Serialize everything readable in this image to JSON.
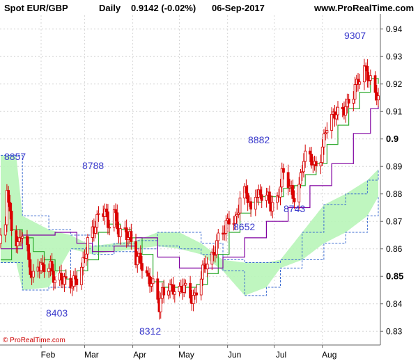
{
  "header": {
    "instrument": "Spot EUR/GBP",
    "period": "Daily",
    "quote": "0.9142 (-0.02%)",
    "date": "06-Sep-2017",
    "site": "www.ProRealTime.com"
  },
  "footer": {
    "copyright": "© ProRealTime.com"
  },
  "chart_data": {
    "type": "candlestick",
    "title": "Spot EUR/GBP",
    "ylim": [
      0.825,
      0.945
    ],
    "y_ticks": [
      "0.94",
      "0.93",
      "0.92",
      "0.91",
      "0.9",
      "0.89",
      "0.88",
      "0.87",
      "0.86",
      "0.85",
      "0.84",
      "0.83"
    ],
    "y_major_ticks": [
      "0.9",
      "0.85"
    ],
    "x_ticks": [
      {
        "label": "Feb",
        "date": "2017-02-01"
      },
      {
        "label": "Mar",
        "date": "2017-03-01"
      },
      {
        "label": "Apr",
        "date": "2017-04-01"
      },
      {
        "label": "May",
        "date": "2017-05-01"
      },
      {
        "label": "Jun",
        "date": "2017-06-01"
      },
      {
        "label": "Jul",
        "date": "2017-07-01"
      },
      {
        "label": "Aug",
        "date": "2017-08-01"
      }
    ],
    "xlim": [
      "2017-01-06",
      "2017-09-06"
    ],
    "annotations": [
      {
        "text": "8857",
        "date": "2017-01-10",
        "price": 0.8857
      },
      {
        "text": "8788",
        "date": "2017-03-14",
        "price": 0.8788
      },
      {
        "text": "8403",
        "date": "2017-02-07",
        "price": 0.8403
      },
      {
        "text": "8312",
        "date": "2017-04-18",
        "price": 0.8312
      },
      {
        "text": "8882",
        "date": "2017-06-19",
        "price": 0.8882
      },
      {
        "text": "8652",
        "date": "2017-06-13",
        "price": 0.8652
      },
      {
        "text": "8743",
        "date": "2017-07-05",
        "price": 0.8743
      },
      {
        "text": "9307",
        "date": "2017-08-29",
        "price": 0.9307
      }
    ],
    "close_path": [
      [
        "2017-01-06",
        0.862
      ],
      [
        "2017-01-09",
        0.868
      ],
      [
        "2017-01-10",
        0.882
      ],
      [
        "2017-01-11",
        0.875
      ],
      [
        "2017-01-13",
        0.869
      ],
      [
        "2017-01-17",
        0.862
      ],
      [
        "2017-01-19",
        0.866
      ],
      [
        "2017-01-23",
        0.858
      ],
      [
        "2017-01-26",
        0.849
      ],
      [
        "2017-01-30",
        0.856
      ],
      [
        "2017-02-02",
        0.853
      ],
      [
        "2017-02-07",
        0.852
      ],
      [
        "2017-02-10",
        0.849
      ],
      [
        "2017-02-14",
        0.851
      ],
      [
        "2017-02-17",
        0.847
      ],
      [
        "2017-02-21",
        0.846
      ],
      [
        "2017-02-24",
        0.85
      ],
      [
        "2017-02-28",
        0.856
      ],
      [
        "2017-03-03",
        0.862
      ],
      [
        "2017-03-07",
        0.866
      ],
      [
        "2017-03-10",
        0.873
      ],
      [
        "2017-03-14",
        0.876
      ],
      [
        "2017-03-16",
        0.868
      ],
      [
        "2017-03-20",
        0.872
      ],
      [
        "2017-03-23",
        0.866
      ],
      [
        "2017-03-27",
        0.868
      ],
      [
        "2017-03-30",
        0.864
      ],
      [
        "2017-04-03",
        0.855
      ],
      [
        "2017-04-06",
        0.856
      ],
      [
        "2017-04-10",
        0.851
      ],
      [
        "2017-04-13",
        0.848
      ],
      [
        "2017-04-18",
        0.838
      ],
      [
        "2017-04-20",
        0.844
      ],
      [
        "2017-04-24",
        0.848
      ],
      [
        "2017-04-27",
        0.845
      ],
      [
        "2017-05-01",
        0.843
      ],
      [
        "2017-05-04",
        0.847
      ],
      [
        "2017-05-08",
        0.844
      ],
      [
        "2017-05-11",
        0.842
      ],
      [
        "2017-05-15",
        0.849
      ],
      [
        "2017-05-18",
        0.855
      ],
      [
        "2017-05-22",
        0.858
      ],
      [
        "2017-05-25",
        0.862
      ],
      [
        "2017-05-30",
        0.866
      ],
      [
        "2017-06-02",
        0.872
      ],
      [
        "2017-06-06",
        0.871
      ],
      [
        "2017-06-09",
        0.877
      ],
      [
        "2017-06-13",
        0.88
      ],
      [
        "2017-06-16",
        0.874
      ],
      [
        "2017-06-19",
        0.882
      ],
      [
        "2017-06-22",
        0.879
      ],
      [
        "2017-06-26",
        0.878
      ],
      [
        "2017-06-29",
        0.876
      ],
      [
        "2017-07-03",
        0.879
      ],
      [
        "2017-07-06",
        0.887
      ],
      [
        "2017-07-10",
        0.883
      ],
      [
        "2017-07-13",
        0.879
      ],
      [
        "2017-07-17",
        0.884
      ],
      [
        "2017-07-20",
        0.893
      ],
      [
        "2017-07-24",
        0.892
      ],
      [
        "2017-07-27",
        0.89
      ],
      [
        "2017-07-31",
        0.895
      ],
      [
        "2017-08-03",
        0.903
      ],
      [
        "2017-08-07",
        0.906
      ],
      [
        "2017-08-10",
        0.91
      ],
      [
        "2017-08-14",
        0.912
      ],
      [
        "2017-08-17",
        0.912
      ],
      [
        "2017-08-21",
        0.915
      ],
      [
        "2017-08-24",
        0.922
      ],
      [
        "2017-08-29",
        0.927
      ],
      [
        "2017-08-31",
        0.921
      ],
      [
        "2017-09-04",
        0.916
      ],
      [
        "2017-09-06",
        0.9142
      ]
    ],
    "series": [
      {
        "role": "tenkan",
        "color": "#2eaa2e",
        "points": [
          [
            "2017-01-06",
            0.856
          ],
          [
            "2017-01-13",
            0.867
          ],
          [
            "2017-01-20",
            0.864
          ],
          [
            "2017-01-27",
            0.859
          ],
          [
            "2017-02-03",
            0.856
          ],
          [
            "2017-02-10",
            0.852
          ],
          [
            "2017-02-17",
            0.849
          ],
          [
            "2017-02-24",
            0.852
          ],
          [
            "2017-03-03",
            0.856
          ],
          [
            "2017-03-10",
            0.866
          ],
          [
            "2017-03-17",
            0.869
          ],
          [
            "2017-03-24",
            0.867
          ],
          [
            "2017-03-31",
            0.864
          ],
          [
            "2017-04-07",
            0.858
          ],
          [
            "2017-04-14",
            0.848
          ],
          [
            "2017-04-21",
            0.846
          ],
          [
            "2017-04-28",
            0.846
          ],
          [
            "2017-05-05",
            0.846
          ],
          [
            "2017-05-12",
            0.847
          ],
          [
            "2017-05-19",
            0.851
          ],
          [
            "2017-05-26",
            0.858
          ],
          [
            "2017-06-02",
            0.866
          ],
          [
            "2017-06-09",
            0.873
          ],
          [
            "2017-06-16",
            0.877
          ],
          [
            "2017-06-23",
            0.879
          ],
          [
            "2017-06-30",
            0.879
          ],
          [
            "2017-07-07",
            0.882
          ],
          [
            "2017-07-14",
            0.883
          ],
          [
            "2017-07-21",
            0.887
          ],
          [
            "2017-07-28",
            0.891
          ],
          [
            "2017-08-04",
            0.898
          ],
          [
            "2017-08-11",
            0.905
          ],
          [
            "2017-08-18",
            0.911
          ],
          [
            "2017-08-25",
            0.917
          ],
          [
            "2017-09-01",
            0.922
          ],
          [
            "2017-09-06",
            0.92
          ]
        ]
      },
      {
        "role": "kijun",
        "color": "#8000a0",
        "points": [
          [
            "2017-01-06",
            0.86
          ],
          [
            "2017-01-20",
            0.865
          ],
          [
            "2017-02-10",
            0.866
          ],
          [
            "2017-02-24",
            0.862
          ],
          [
            "2017-03-06",
            0.859
          ],
          [
            "2017-03-20",
            0.861
          ],
          [
            "2017-04-03",
            0.864
          ],
          [
            "2017-04-17",
            0.857
          ],
          [
            "2017-05-01",
            0.853
          ],
          [
            "2017-05-15",
            0.853
          ],
          [
            "2017-05-29",
            0.857
          ],
          [
            "2017-06-12",
            0.864
          ],
          [
            "2017-06-26",
            0.87
          ],
          [
            "2017-07-10",
            0.875
          ],
          [
            "2017-07-24",
            0.883
          ],
          [
            "2017-08-07",
            0.891
          ],
          [
            "2017-08-21",
            0.902
          ],
          [
            "2017-09-01",
            0.911
          ],
          [
            "2017-09-06",
            0.912
          ]
        ]
      }
    ],
    "cloud": {
      "bullish_color": "#b8f5b8",
      "bearish_color": "#f7a8dc",
      "span_a": [
        [
          "2017-01-06",
          0.894
        ],
        [
          "2017-01-16",
          0.894
        ],
        [
          "2017-01-20",
          0.872
        ],
        [
          "2017-02-06",
          0.867
        ],
        [
          "2017-02-20",
          0.865
        ],
        [
          "2017-03-06",
          0.861
        ],
        [
          "2017-03-20",
          0.862
        ],
        [
          "2017-04-03",
          0.863
        ],
        [
          "2017-04-17",
          0.866
        ],
        [
          "2017-05-01",
          0.866
        ],
        [
          "2017-05-15",
          0.862
        ],
        [
          "2017-05-29",
          0.856
        ],
        [
          "2017-06-12",
          0.855
        ],
        [
          "2017-06-26",
          0.855
        ],
        [
          "2017-07-05",
          0.856
        ],
        [
          "2017-07-19",
          0.866
        ],
        [
          "2017-08-02",
          0.876
        ],
        [
          "2017-08-16",
          0.88
        ],
        [
          "2017-08-30",
          0.885
        ],
        [
          "2017-09-06",
          0.889
        ]
      ],
      "span_b": [
        [
          "2017-01-06",
          0.855
        ],
        [
          "2017-01-16",
          0.855
        ],
        [
          "2017-01-20",
          0.845
        ],
        [
          "2017-02-06",
          0.846
        ],
        [
          "2017-02-20",
          0.86
        ],
        [
          "2017-03-06",
          0.858
        ],
        [
          "2017-03-20",
          0.859
        ],
        [
          "2017-04-03",
          0.86
        ],
        [
          "2017-04-17",
          0.861
        ],
        [
          "2017-05-01",
          0.86
        ],
        [
          "2017-05-15",
          0.858
        ],
        [
          "2017-05-29",
          0.852
        ],
        [
          "2017-06-12",
          0.843
        ],
        [
          "2017-06-26",
          0.846
        ],
        [
          "2017-07-05",
          0.853
        ],
        [
          "2017-07-19",
          0.856
        ],
        [
          "2017-08-02",
          0.862
        ],
        [
          "2017-08-16",
          0.866
        ],
        [
          "2017-08-30",
          0.872
        ],
        [
          "2017-09-06",
          0.879
        ]
      ]
    }
  }
}
